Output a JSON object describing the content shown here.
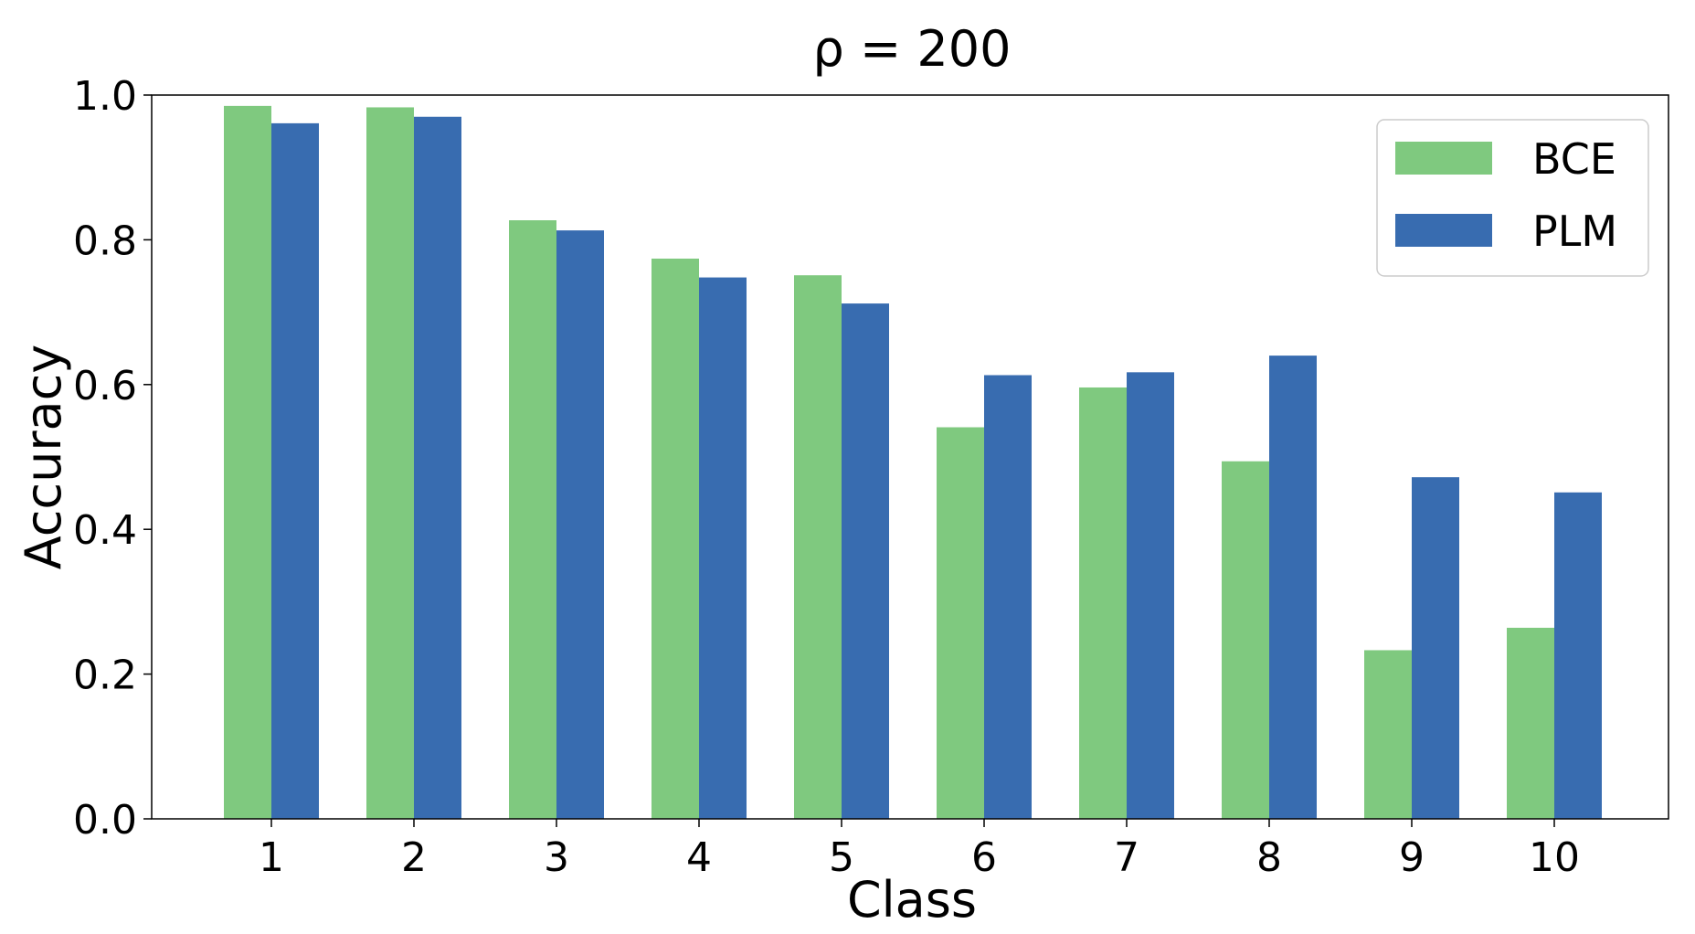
{
  "chart_data": {
    "type": "bar",
    "title": "ρ = 200",
    "xlabel": "Class",
    "ylabel": "Accuracy",
    "categories": [
      "1",
      "2",
      "3",
      "4",
      "5",
      "6",
      "7",
      "8",
      "9",
      "10"
    ],
    "series": [
      {
        "name": "BCE",
        "color": "#7fc97f",
        "values": [
          0.985,
          0.983,
          0.827,
          0.774,
          0.751,
          0.541,
          0.596,
          0.494,
          0.233,
          0.264
        ]
      },
      {
        "name": "PLM",
        "color": "#386cb0",
        "values": [
          0.961,
          0.97,
          0.813,
          0.748,
          0.712,
          0.613,
          0.617,
          0.64,
          0.472,
          0.451
        ]
      }
    ],
    "ylim": [
      0,
      1.0
    ],
    "yticks": [
      "0.0",
      "0.2",
      "0.4",
      "0.6",
      "0.8",
      "1.0"
    ],
    "grid": false,
    "legend_position": "top-right"
  }
}
